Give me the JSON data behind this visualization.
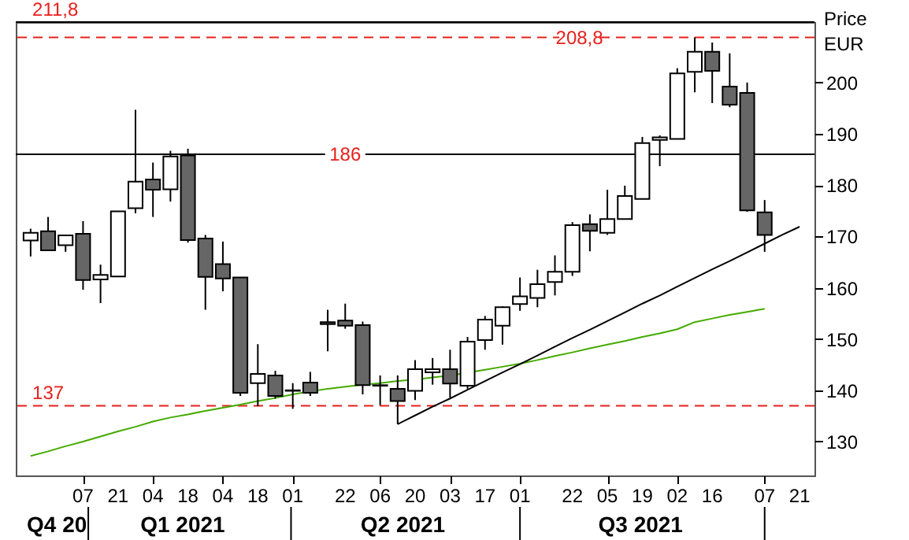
{
  "chart_data": {
    "type": "candlestick",
    "categories": [
      null,
      null,
      null,
      "07",
      null,
      "21",
      null,
      "04",
      null,
      "18",
      null,
      "04",
      null,
      "18",
      null,
      "01",
      null,
      null,
      "22",
      null,
      "06",
      null,
      "20",
      null,
      "03",
      null,
      "17",
      null,
      "01",
      null,
      null,
      "22",
      null,
      "05",
      null,
      "19",
      null,
      "02",
      null,
      "16",
      null,
      null,
      "07",
      null,
      "21"
    ],
    "ohlc": [
      [
        169.2,
        171.5,
        166.1,
        170.7
      ],
      [
        171.0,
        173.8,
        167.3,
        167.3
      ],
      [
        168.3,
        170.3,
        167.0,
        170.2
      ],
      [
        170.5,
        173.0,
        159.6,
        161.5
      ],
      [
        161.6,
        164.5,
        157.0,
        162.5
      ],
      [
        162.2,
        174.9,
        162.2,
        174.9
      ],
      [
        175.5,
        194.7,
        174.5,
        180.7
      ],
      [
        181.1,
        184.4,
        173.8,
        179.1
      ],
      [
        179.2,
        186.7,
        176.8,
        185.6
      ],
      [
        185.8,
        187.1,
        168.8,
        169.3
      ],
      [
        169.6,
        170.3,
        155.7,
        162.1
      ],
      [
        164.6,
        169.0,
        159.3,
        161.8
      ],
      [
        162.0,
        162.0,
        138.9,
        139.5
      ],
      [
        141.4,
        149.0,
        136.9,
        143.2
      ],
      [
        142.9,
        143.8,
        138.4,
        138.9
      ],
      [
        139.9,
        141.4,
        136.4,
        140.0
      ],
      [
        141.5,
        143.6,
        138.9,
        139.5
      ],
      [
        153.3,
        155.7,
        147.6,
        152.9
      ],
      [
        153.6,
        156.9,
        152.0,
        152.6
      ],
      [
        152.7,
        153.4,
        139.2,
        141.0
      ],
      [
        141.0,
        142.9,
        137.1,
        140.9
      ],
      [
        140.3,
        142.9,
        133.4,
        137.9
      ],
      [
        139.9,
        145.9,
        138.1,
        144.1
      ],
      [
        143.5,
        146.3,
        141.1,
        144.1
      ],
      [
        144.1,
        147.9,
        138.6,
        141.3
      ],
      [
        140.9,
        150.4,
        140.3,
        149.5
      ],
      [
        149.8,
        154.5,
        147.9,
        153.8
      ],
      [
        152.6,
        156.4,
        148.9,
        156.2
      ],
      [
        156.8,
        162.0,
        155.5,
        158.3
      ],
      [
        158.0,
        163.5,
        156.2,
        160.7
      ],
      [
        161.1,
        166.3,
        158.5,
        163.1
      ],
      [
        163.1,
        172.8,
        162.3,
        172.2
      ],
      [
        172.4,
        174.3,
        167.1,
        171.1
      ],
      [
        170.7,
        179.1,
        170.3,
        173.4
      ],
      [
        173.4,
        179.9,
        173.4,
        177.9
      ],
      [
        177.3,
        189.4,
        177.3,
        188.2
      ],
      [
        188.8,
        189.7,
        183.7,
        189.3
      ],
      [
        189.0,
        202.8,
        189.0,
        201.8
      ],
      [
        202.1,
        208.8,
        198.1,
        206.0
      ],
      [
        206.0,
        207.8,
        196.0,
        202.3
      ],
      [
        199.2,
        205.7,
        195.2,
        195.7
      ],
      [
        198.0,
        200.0,
        174.8,
        175.1
      ],
      [
        174.7,
        177.1,
        167.0,
        170.3
      ],
      null,
      null
    ],
    "colors": [
      "#ffffff",
      "#666666",
      "#ffffff",
      "#666666",
      "#ffffff",
      "#ffffff",
      "#ffffff",
      "#666666",
      "#ffffff",
      "#666666",
      "#666666",
      "#666666",
      "#666666",
      "#ffffff",
      "#666666",
      "#ffffff",
      "#666666",
      "#666666",
      "#666666",
      "#666666",
      "#666666",
      "#666666",
      "#ffffff",
      "#ffffff",
      "#666666",
      "#ffffff",
      "#ffffff",
      "#ffffff",
      "#ffffff",
      "#ffffff",
      "#ffffff",
      "#ffffff",
      "#666666",
      "#ffffff",
      "#ffffff",
      "#ffffff",
      "#ffffff",
      "#ffffff",
      "#ffffff",
      "#666666",
      "#666666",
      "#666666",
      "#666666",
      null,
      null
    ],
    "series": [
      {
        "type": "line",
        "color": "#44aa00",
        "values": [
          127.2,
          128.1,
          129.1,
          130.0,
          131.0,
          132.0,
          132.9,
          133.9,
          134.7,
          135.3,
          136.0,
          136.6,
          137.2,
          137.9,
          138.5,
          139.2,
          139.8,
          140.3,
          140.7,
          141.1,
          141.4,
          141.8,
          142.1,
          142.5,
          142.9,
          null,
          144.0,
          144.6,
          145.2,
          145.9,
          146.7,
          147.4,
          148.2,
          148.9,
          149.6,
          150.4,
          151.1,
          151.9,
          153.3,
          154.0,
          154.7,
          155.3,
          155.9,
          null,
          null
        ]
      },
      {
        "type": "line",
        "color": "#000000",
        "values": [
          null,
          null,
          null,
          null,
          null,
          null,
          null,
          null,
          null,
          null,
          null,
          null,
          null,
          null,
          null,
          null,
          null,
          null,
          null,
          null,
          null,
          133.4,
          135.1,
          136.8,
          138.4,
          140.1,
          141.8,
          143.5,
          145.1,
          146.8,
          148.5,
          150.2,
          151.8,
          153.5,
          155.2,
          156.9,
          158.5,
          160.2,
          161.9,
          163.6,
          165.2,
          166.9,
          168.6,
          170.3,
          171.9
        ]
      }
    ],
    "ylim": [
      123.4,
      211.8
    ],
    "yticks": [
      130,
      140,
      150,
      160,
      170,
      180,
      190,
      200
    ],
    "ylabel": "Price EUR",
    "ref_lines": [
      {
        "axis": "y",
        "value": 211.8,
        "label": "211,8",
        "color": "#000000",
        "line_style": "solid"
      },
      {
        "axis": "y",
        "value": 208.8,
        "label": "208,8",
        "color": "#e8201c",
        "line_style": "dashed"
      },
      {
        "axis": "y",
        "value": 186,
        "label": "186",
        "color": "#000000",
        "line_style": "solid"
      },
      {
        "axis": "y",
        "value": 137,
        "label": "137",
        "color": "#e8201c",
        "line_style": "dashed"
      }
    ],
    "annotations": [
      "Q4 20",
      "Q1 2021",
      "Q2 2021",
      "Q3 2021"
    ]
  }
}
